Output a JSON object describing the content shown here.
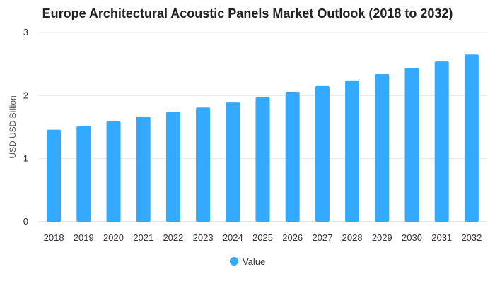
{
  "chart_data": {
    "type": "bar",
    "title": "Europe Architectural Acoustic Panels Market Outlook (2018 to 2032)",
    "ylabel": "USD USD Billion",
    "xlabel": "",
    "ylim": [
      0,
      3
    ],
    "yticks": [
      0,
      1,
      2,
      3
    ],
    "grid": true,
    "legend_position": "bottom",
    "categories": [
      "2018",
      "2019",
      "2020",
      "2021",
      "2022",
      "2023",
      "2024",
      "2025",
      "2026",
      "2027",
      "2028",
      "2029",
      "2030",
      "2031",
      "2032"
    ],
    "series": [
      {
        "name": "Value",
        "color": "#33AAFF",
        "values": [
          1.46,
          1.52,
          1.59,
          1.67,
          1.74,
          1.81,
          1.89,
          1.97,
          2.06,
          2.15,
          2.24,
          2.34,
          2.44,
          2.54,
          2.65
        ]
      }
    ]
  }
}
